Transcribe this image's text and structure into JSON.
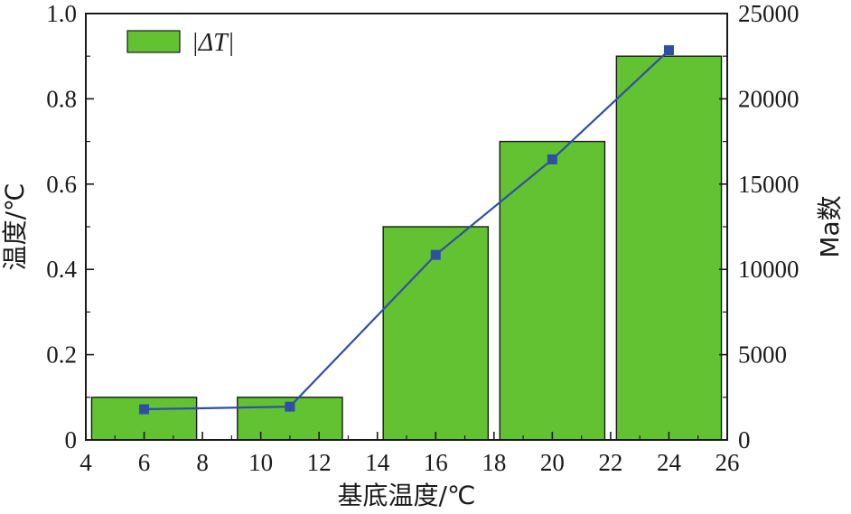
{
  "chart_data": {
    "type": "bar",
    "x_axis": {
      "label": "基底温度/℃",
      "range": [
        4,
        26
      ],
      "ticks": [
        "4",
        "6",
        "8",
        "10",
        "12",
        "14",
        "16",
        "18",
        "20",
        "22",
        "24",
        "26"
      ]
    },
    "y_left": {
      "label": "温度/℃",
      "range": [
        0,
        1.0
      ],
      "ticks": [
        "0",
        "0.2",
        "0.4",
        "0.6",
        "0.8",
        "1.0"
      ]
    },
    "y_right": {
      "label": "Ma数",
      "range": [
        0,
        25000
      ],
      "ticks": [
        "0",
        "5000",
        "10000",
        "15000",
        "20000",
        "25000"
      ]
    },
    "bars": {
      "name": "|ΔT|",
      "color": "#62c232",
      "axis": "left",
      "x": [
        6,
        11,
        16,
        20,
        24
      ],
      "values": [
        0.1,
        0.1,
        0.5,
        0.7,
        0.9
      ],
      "width": 3.6
    },
    "line": {
      "color": "#2f4fa5",
      "marker_color": "#2f4fa5",
      "axis": "right",
      "x": [
        6,
        11,
        16,
        20,
        24
      ],
      "values": [
        1800,
        1950,
        10850,
        16450,
        22850
      ]
    },
    "legend": {
      "position": "top-left",
      "entries": [
        "|ΔT|"
      ]
    },
    "grid": false
  }
}
